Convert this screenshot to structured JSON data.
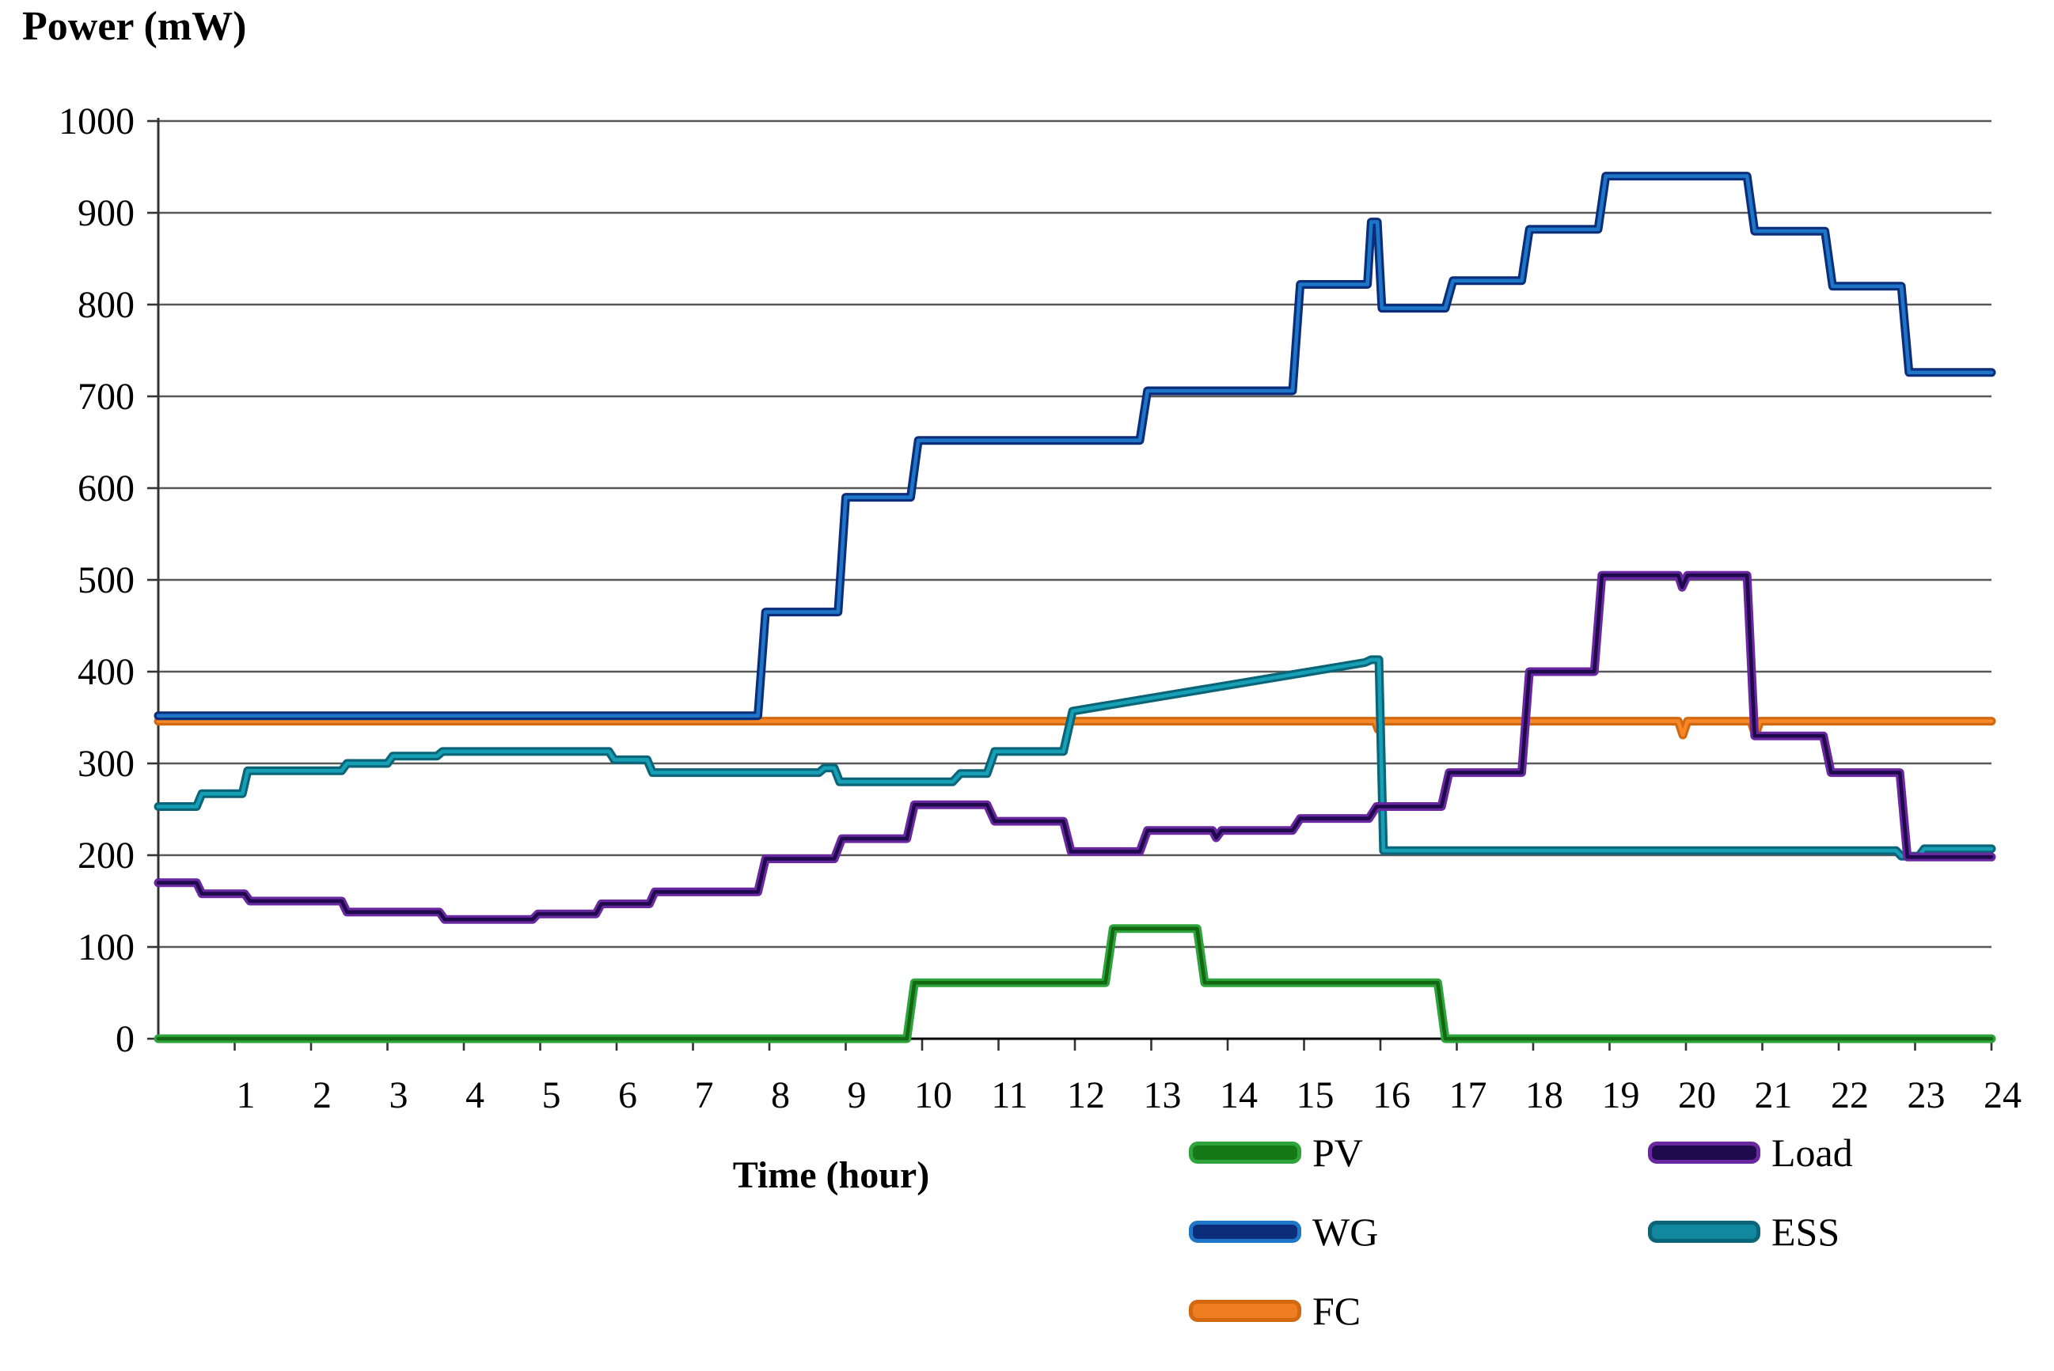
{
  "title": "Power (mW)",
  "chart_data": {
    "type": "line",
    "title": "Power (mW)",
    "xlabel": "Time (hour)",
    "ylabel": "Power (mW)",
    "xlim": [
      0,
      24
    ],
    "ylim": [
      0,
      1000
    ],
    "grid": "horizontal",
    "x_tick_labels": [
      "1",
      "2",
      "3",
      "4",
      "5",
      "6",
      "7",
      "8",
      "9",
      "10",
      "11",
      "12",
      "13",
      "14",
      "15",
      "16",
      "17",
      "18",
      "19",
      "20",
      "21",
      "22",
      "23",
      "24"
    ],
    "y_tick_labels": [
      "0",
      "100",
      "200",
      "300",
      "400",
      "500",
      "600",
      "700",
      "800",
      "900",
      "1000"
    ],
    "legend_position": "bottom-right",
    "legend_columns": [
      [
        "PV",
        "WG",
        "FC"
      ],
      [
        "Load",
        "ESS"
      ]
    ],
    "series": [
      {
        "name": "FC",
        "core": "#f6882a",
        "edge": "#d4680e",
        "legend_fill": "#ef7d22",
        "legend_border": "#d4680e",
        "points": [
          [
            0,
            346
          ],
          [
            15.93,
            346
          ],
          [
            15.97,
            337
          ],
          [
            16.02,
            346
          ],
          [
            19.9,
            346
          ],
          [
            19.96,
            331
          ],
          [
            20.02,
            346
          ],
          [
            20.85,
            346
          ],
          [
            20.91,
            331
          ],
          [
            20.97,
            346
          ],
          [
            24,
            346
          ]
        ]
      },
      {
        "name": "WG",
        "core": "#1d76c7",
        "edge": "#0b2d7a",
        "legend_fill": "#0b2d7a",
        "legend_border": "#1d76c7",
        "points": [
          [
            0,
            352
          ],
          [
            7.85,
            352
          ],
          [
            7.95,
            465
          ],
          [
            8.9,
            465
          ],
          [
            9.0,
            590
          ],
          [
            9.85,
            590
          ],
          [
            9.95,
            652
          ],
          [
            12.85,
            652
          ],
          [
            12.95,
            706
          ],
          [
            14.85,
            706
          ],
          [
            14.95,
            822
          ],
          [
            15.83,
            822
          ],
          [
            15.88,
            890
          ],
          [
            15.96,
            890
          ],
          [
            16.02,
            796
          ],
          [
            16.85,
            796
          ],
          [
            16.95,
            826
          ],
          [
            17.85,
            826
          ],
          [
            17.95,
            882
          ],
          [
            18.85,
            882
          ],
          [
            18.95,
            940
          ],
          [
            20.8,
            940
          ],
          [
            20.9,
            880
          ],
          [
            21.82,
            880
          ],
          [
            21.92,
            820
          ],
          [
            22.82,
            820
          ],
          [
            22.92,
            726
          ],
          [
            24,
            726
          ]
        ]
      },
      {
        "name": "ESS",
        "core": "#16a0b6",
        "edge": "#0b6478",
        "legend_fill": "#11889e",
        "legend_border": "#0b6478",
        "points": [
          [
            0,
            253
          ],
          [
            0.5,
            253
          ],
          [
            0.57,
            267
          ],
          [
            1.1,
            267
          ],
          [
            1.17,
            292
          ],
          [
            2.4,
            292
          ],
          [
            2.47,
            300
          ],
          [
            3.0,
            300
          ],
          [
            3.07,
            308
          ],
          [
            3.65,
            308
          ],
          [
            3.72,
            313
          ],
          [
            5.9,
            313
          ],
          [
            5.97,
            304
          ],
          [
            6.4,
            304
          ],
          [
            6.47,
            290
          ],
          [
            8.65,
            290
          ],
          [
            8.72,
            295
          ],
          [
            8.85,
            295
          ],
          [
            8.92,
            280
          ],
          [
            10.4,
            280
          ],
          [
            10.5,
            289
          ],
          [
            10.85,
            289
          ],
          [
            10.95,
            313
          ],
          [
            11.85,
            313
          ],
          [
            11.97,
            357
          ],
          [
            15.8,
            410
          ],
          [
            15.88,
            413
          ],
          [
            15.98,
            413
          ],
          [
            16.04,
            205
          ],
          [
            22.75,
            205
          ],
          [
            22.82,
            199
          ],
          [
            23.05,
            199
          ],
          [
            23.12,
            207
          ],
          [
            24,
            207
          ]
        ]
      },
      {
        "name": "Load",
        "core": "#200a4e",
        "edge": "#6a28a0",
        "legend_fill": "#200a4e",
        "legend_border": "#6a28a0",
        "points": [
          [
            0,
            170
          ],
          [
            0.5,
            170
          ],
          [
            0.57,
            158
          ],
          [
            1.13,
            158
          ],
          [
            1.2,
            150
          ],
          [
            2.4,
            150
          ],
          [
            2.47,
            138
          ],
          [
            3.68,
            138
          ],
          [
            3.75,
            130
          ],
          [
            4.9,
            130
          ],
          [
            4.97,
            136
          ],
          [
            5.73,
            136
          ],
          [
            5.8,
            147
          ],
          [
            6.43,
            147
          ],
          [
            6.5,
            160
          ],
          [
            7.85,
            160
          ],
          [
            7.95,
            196
          ],
          [
            8.85,
            196
          ],
          [
            8.95,
            218
          ],
          [
            9.8,
            218
          ],
          [
            9.9,
            255
          ],
          [
            10.85,
            255
          ],
          [
            10.95,
            237
          ],
          [
            11.85,
            237
          ],
          [
            11.95,
            204
          ],
          [
            12.85,
            204
          ],
          [
            12.95,
            227
          ],
          [
            13.8,
            227
          ],
          [
            13.85,
            219
          ],
          [
            13.92,
            227
          ],
          [
            14.85,
            227
          ],
          [
            14.95,
            240
          ],
          [
            15.85,
            240
          ],
          [
            15.95,
            253
          ],
          [
            16.8,
            253
          ],
          [
            16.9,
            290
          ],
          [
            17.85,
            290
          ],
          [
            17.95,
            400
          ],
          [
            18.8,
            400
          ],
          [
            18.9,
            505
          ],
          [
            19.9,
            505
          ],
          [
            19.95,
            492
          ],
          [
            20.02,
            505
          ],
          [
            20.8,
            505
          ],
          [
            20.9,
            330
          ],
          [
            21.8,
            330
          ],
          [
            21.9,
            290
          ],
          [
            22.8,
            290
          ],
          [
            22.9,
            198
          ],
          [
            24,
            198
          ]
        ]
      },
      {
        "name": "PV",
        "core": "#136813",
        "edge": "#2fa33c",
        "legend_fill": "#157a15",
        "legend_border": "#2fa33c",
        "points": [
          [
            0,
            0
          ],
          [
            9.8,
            0
          ],
          [
            9.9,
            61
          ],
          [
            12.4,
            61
          ],
          [
            12.5,
            120
          ],
          [
            13.6,
            120
          ],
          [
            13.7,
            61
          ],
          [
            16.75,
            61
          ],
          [
            16.85,
            0
          ],
          [
            24,
            0
          ]
        ]
      }
    ]
  }
}
